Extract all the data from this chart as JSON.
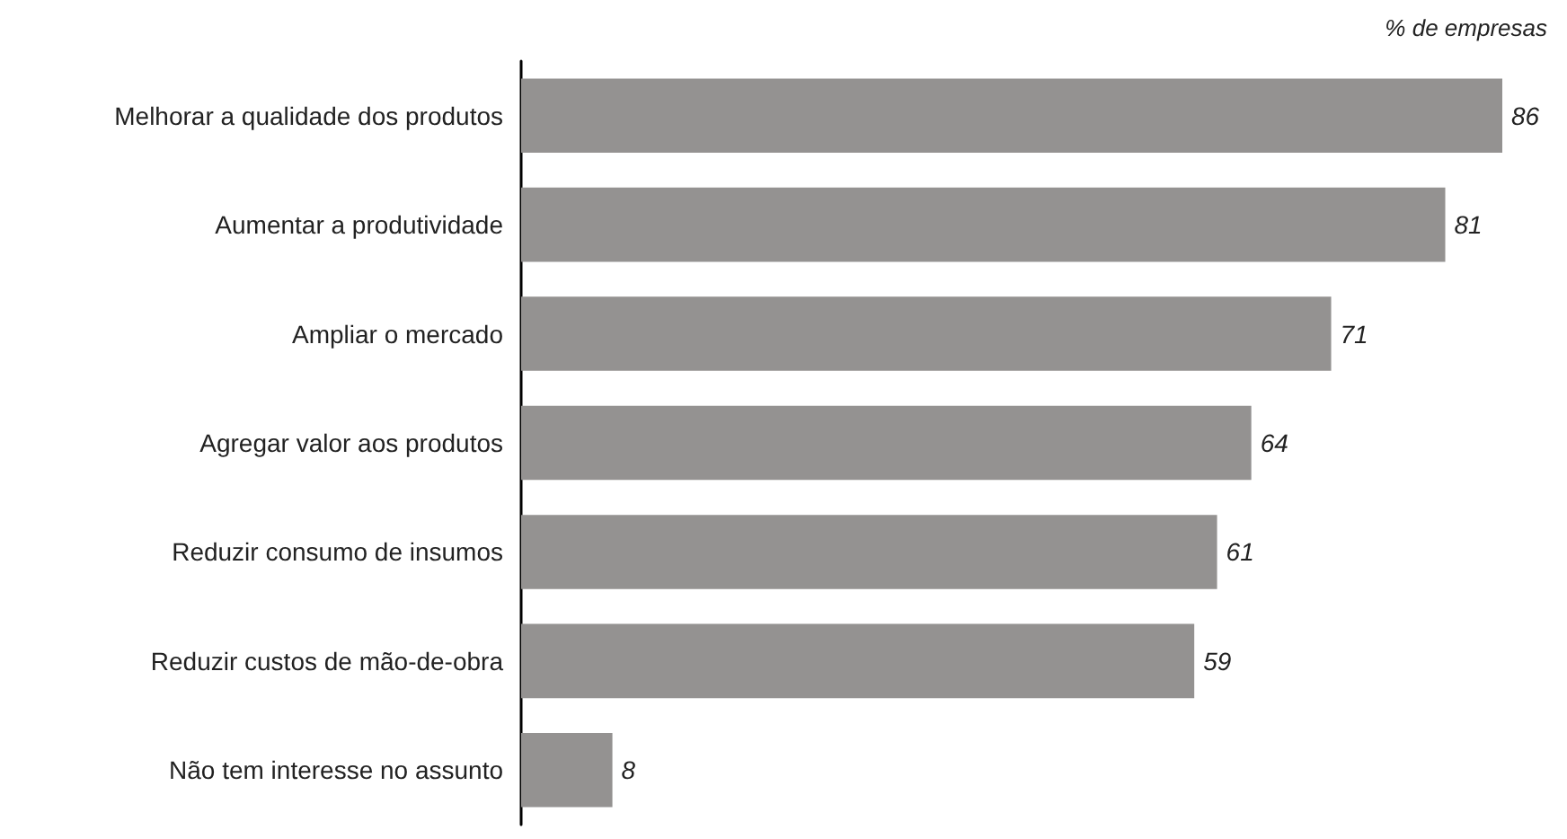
{
  "chart_data": {
    "type": "bar",
    "orientation": "horizontal",
    "subtitle": "% de empresas",
    "categories": [
      "Melhorar a qualidade dos produtos",
      "Aumentar a produtividade",
      "Ampliar o mercado",
      "Agregar valor aos produtos",
      "Reduzir consumo de insumos",
      "Reduzir custos de mão-de-obra",
      "Não tem interesse no assunto"
    ],
    "values": [
      86,
      81,
      71,
      64,
      61,
      59,
      8
    ],
    "color": "#949291",
    "data_labels": true
  }
}
